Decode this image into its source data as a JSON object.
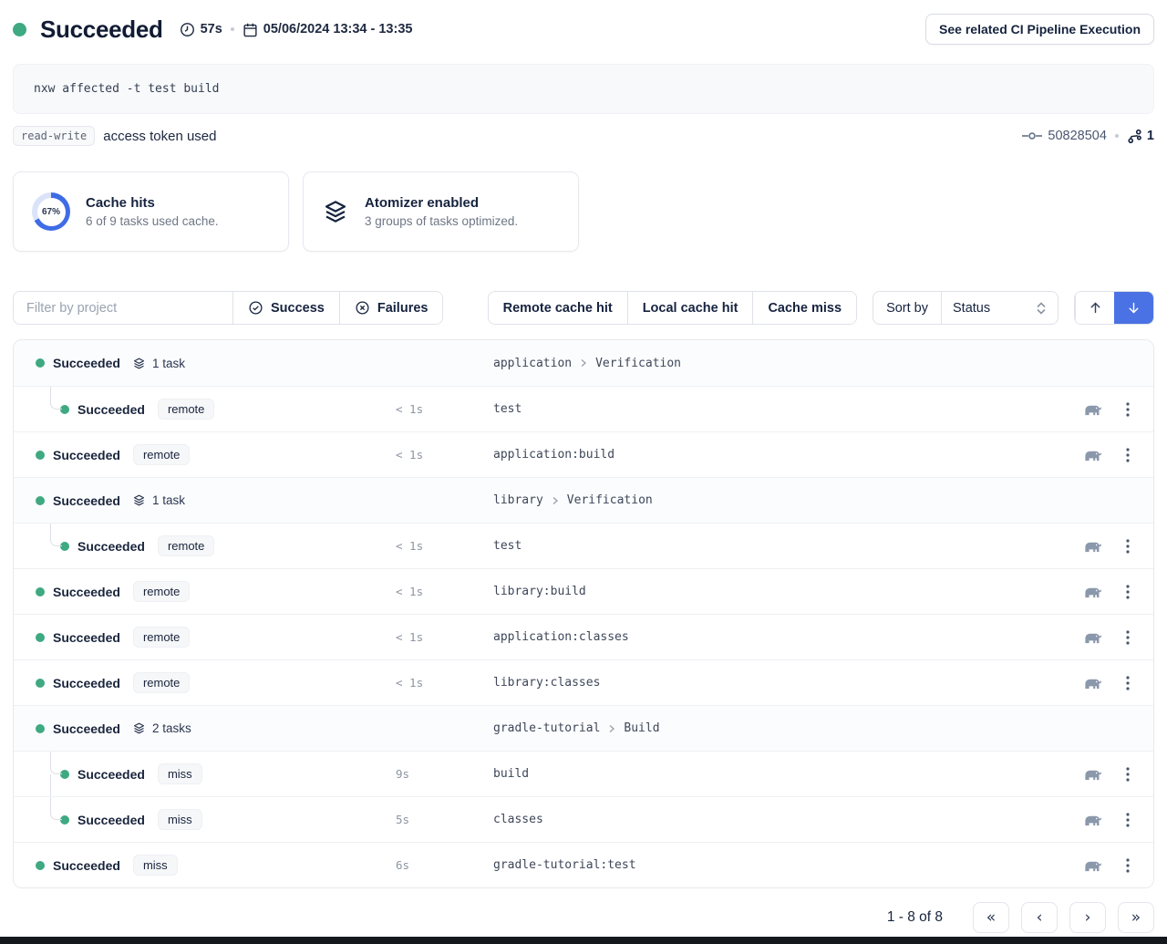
{
  "header": {
    "status": "Succeeded",
    "duration": "57s",
    "date_range": "05/06/2024 13:34 - 13:35",
    "cta": "See related CI Pipeline Execution"
  },
  "command": "nxw affected -t test build",
  "token": {
    "badge": "read-write",
    "label": "access token used"
  },
  "meta": {
    "commit": "50828504",
    "branch_count": "1"
  },
  "cards": [
    {
      "title": "Cache hits",
      "subtitle": "6 of 9 tasks used cache.",
      "percent": 67,
      "percent_label": "67%",
      "accent": "#3f6ce6",
      "track": "#dbe3f8"
    },
    {
      "title": "Atomizer enabled",
      "subtitle": "3 groups of tasks optimized."
    }
  ],
  "filters": {
    "project_placeholder": "Filter by project",
    "success": "Success",
    "failures": "Failures",
    "cache_buttons": [
      "Remote cache hit",
      "Local cache hit",
      "Cache miss"
    ],
    "sort_label": "Sort by",
    "sort_value": "Status"
  },
  "colors": {
    "green": "#3fa982",
    "blue": "#4a72e4",
    "navy": "#16233f",
    "slate": "#8b98ab"
  },
  "rows": [
    {
      "type": "group",
      "status": "Succeeded",
      "tasks_label": "1 task",
      "project": "application",
      "target": "Verification"
    },
    {
      "type": "task",
      "status": "Succeeded",
      "badge": "remote",
      "duration": "< 1s",
      "task": "test",
      "connector": "single"
    },
    {
      "type": "task",
      "status": "Succeeded",
      "badge": "remote",
      "duration": "< 1s",
      "task": "application:build"
    },
    {
      "type": "group",
      "status": "Succeeded",
      "tasks_label": "1 task",
      "project": "library",
      "target": "Verification"
    },
    {
      "type": "task",
      "status": "Succeeded",
      "badge": "remote",
      "duration": "< 1s",
      "task": "test",
      "connector": "single"
    },
    {
      "type": "task",
      "status": "Succeeded",
      "badge": "remote",
      "duration": "< 1s",
      "task": "library:build"
    },
    {
      "type": "task",
      "status": "Succeeded",
      "badge": "remote",
      "duration": "< 1s",
      "task": "application:classes"
    },
    {
      "type": "task",
      "status": "Succeeded",
      "badge": "remote",
      "duration": "< 1s",
      "task": "library:classes"
    },
    {
      "type": "group",
      "status": "Succeeded",
      "tasks_label": "2 tasks",
      "project": "gradle-tutorial",
      "target": "Build"
    },
    {
      "type": "task",
      "status": "Succeeded",
      "badge": "miss",
      "duration": "9s",
      "task": "build",
      "connector": "first"
    },
    {
      "type": "task",
      "status": "Succeeded",
      "badge": "miss",
      "duration": "5s",
      "task": "classes",
      "connector": "last"
    },
    {
      "type": "task",
      "status": "Succeeded",
      "badge": "miss",
      "duration": "6s",
      "task": "gradle-tutorial:test"
    }
  ],
  "pagination": {
    "label": "1 - 8 of 8",
    "first": "«",
    "prev": "‹",
    "next": "›",
    "last": "»"
  }
}
